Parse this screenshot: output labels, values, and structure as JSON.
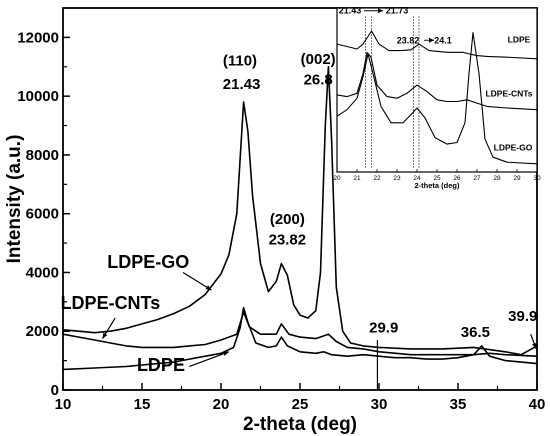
{
  "chart_data": [
    {
      "type": "line",
      "xlabel": "2-theta (deg)",
      "ylabel": "Intensity (a.u.)",
      "xlim": [
        10,
        40
      ],
      "ylim": [
        0,
        13000
      ],
      "x_ticks": [
        10,
        15,
        20,
        25,
        30,
        35,
        40
      ],
      "y_ticks": [
        0,
        2000,
        4000,
        6000,
        8000,
        10000,
        12000
      ],
      "grid": false,
      "series": [
        {
          "name": "LDPE-GO",
          "color": "#000000",
          "points": [
            [
              10,
              2050
            ],
            [
              11,
              2000
            ],
            [
              12,
              1950
            ],
            [
              13,
              2000
            ],
            [
              14,
              2100
            ],
            [
              15,
              2250
            ],
            [
              16,
              2400
            ],
            [
              17,
              2600
            ],
            [
              18,
              2850
            ],
            [
              19,
              3250
            ],
            [
              20,
              3950
            ],
            [
              20.5,
              4600
            ],
            [
              21,
              6000
            ],
            [
              21.2,
              7800
            ],
            [
              21.43,
              9800
            ],
            [
              21.7,
              8800
            ],
            [
              22,
              6600
            ],
            [
              22.5,
              4300
            ],
            [
              23,
              3350
            ],
            [
              23.5,
              3700
            ],
            [
              23.82,
              4300
            ],
            [
              24.2,
              3900
            ],
            [
              24.6,
              2900
            ],
            [
              25,
              2550
            ],
            [
              25.5,
              2450
            ],
            [
              26,
              2700
            ],
            [
              26.3,
              4000
            ],
            [
              26.6,
              9000
            ],
            [
              26.8,
              11000
            ],
            [
              27,
              8500
            ],
            [
              27.3,
              3500
            ],
            [
              27.7,
              2000
            ],
            [
              28.2,
              1600
            ],
            [
              29,
              1500
            ],
            [
              30,
              1450
            ],
            [
              32,
              1400
            ],
            [
              34,
              1400
            ],
            [
              36,
              1450
            ],
            [
              38,
              1300
            ],
            [
              39,
              1200
            ],
            [
              40,
              1500
            ]
          ]
        },
        {
          "name": "LDPE-CNTs",
          "color": "#000000",
          "points": [
            [
              10,
              1900
            ],
            [
              11,
              1800
            ],
            [
              12,
              1700
            ],
            [
              13,
              1600
            ],
            [
              14,
              1500
            ],
            [
              15,
              1450
            ],
            [
              16,
              1450
            ],
            [
              17,
              1450
            ],
            [
              18,
              1500
            ],
            [
              19,
              1550
            ],
            [
              20,
              1700
            ],
            [
              21,
              1900
            ],
            [
              21.43,
              2650
            ],
            [
              21.8,
              2150
            ],
            [
              22.5,
              1900
            ],
            [
              23.5,
              1900
            ],
            [
              23.82,
              2250
            ],
            [
              24.3,
              1900
            ],
            [
              25,
              1800
            ],
            [
              26,
              1750
            ],
            [
              26.8,
              1900
            ],
            [
              27.3,
              1650
            ],
            [
              28,
              1450
            ],
            [
              29,
              1400
            ],
            [
              30,
              1300
            ],
            [
              32,
              1200
            ],
            [
              34,
              1200
            ],
            [
              36,
              1200
            ],
            [
              37,
              1250
            ],
            [
              38,
              1200
            ],
            [
              40,
              1150
            ]
          ]
        },
        {
          "name": "LDPE",
          "color": "#000000",
          "points": [
            [
              10,
              700
            ],
            [
              12,
              750
            ],
            [
              14,
              800
            ],
            [
              15,
              850
            ],
            [
              16,
              900
            ],
            [
              17,
              950
            ],
            [
              18,
              1050
            ],
            [
              19,
              1150
            ],
            [
              20,
              1250
            ],
            [
              20.8,
              1450
            ],
            [
              21.2,
              2100
            ],
            [
              21.43,
              2800
            ],
            [
              21.7,
              2300
            ],
            [
              22.2,
              1600
            ],
            [
              23,
              1450
            ],
            [
              23.5,
              1500
            ],
            [
              23.82,
              1800
            ],
            [
              24.2,
              1500
            ],
            [
              25,
              1300
            ],
            [
              26,
              1250
            ],
            [
              26.5,
              1300
            ],
            [
              27,
              1200
            ],
            [
              28,
              1150
            ],
            [
              29,
              1200
            ],
            [
              30,
              1150
            ],
            [
              31,
              1100
            ],
            [
              32,
              1100
            ],
            [
              33,
              1050
            ],
            [
              34,
              1050
            ],
            [
              35,
              1100
            ],
            [
              36,
              1200
            ],
            [
              36.5,
              1500
            ],
            [
              37,
              1150
            ],
            [
              38,
              1000
            ],
            [
              39,
              950
            ],
            [
              40,
              900
            ]
          ]
        }
      ],
      "annotations": [
        {
          "text": "(110)",
          "x": 21.2,
          "y": 11050
        },
        {
          "text": "21.43",
          "x": 21.3,
          "y": 10250
        },
        {
          "text": "(002)",
          "x": 26.15,
          "y": 11100
        },
        {
          "text": "26.8",
          "x": 26.15,
          "y": 10400
        },
        {
          "text": "(200)",
          "x": 24.2,
          "y": 5650
        },
        {
          "text": "23.82",
          "x": 24.2,
          "y": 4950
        },
        {
          "text": "29.9",
          "x": 30.3,
          "y": 1950
        },
        {
          "text": "36.5",
          "x": 36.1,
          "y": 1800
        },
        {
          "text": "39.9",
          "x": 39.1,
          "y": 2350
        }
      ],
      "series_labels": [
        {
          "text": "LDPE-GO",
          "x": 15.4,
          "y": 4150
        },
        {
          "text": "LDPE-CNTs",
          "x": 13.0,
          "y": 2750
        },
        {
          "text": "LDPE",
          "x": 16.2,
          "y": 650
        }
      ]
    },
    {
      "type": "line",
      "xlabel": "2-theta (deg)",
      "xlim": [
        20,
        30
      ],
      "x_ticks": [
        20,
        21,
        22,
        23,
        24,
        25,
        26,
        27,
        28,
        29,
        30
      ],
      "grid": false,
      "series": [
        {
          "name": "LDPE",
          "color": "#000000",
          "points": [
            [
              20,
              0.78
            ],
            [
              20.5,
              0.765
            ],
            [
              21,
              0.75
            ],
            [
              21.3,
              0.78
            ],
            [
              21.73,
              0.86
            ],
            [
              22.1,
              0.78
            ],
            [
              22.6,
              0.74
            ],
            [
              23.2,
              0.74
            ],
            [
              23.7,
              0.745
            ],
            [
              24.1,
              0.78
            ],
            [
              24.6,
              0.74
            ],
            [
              25.5,
              0.73
            ],
            [
              26.3,
              0.73
            ],
            [
              26.6,
              0.72
            ],
            [
              27,
              0.71
            ],
            [
              27.5,
              0.705
            ],
            [
              28.5,
              0.7
            ],
            [
              30,
              0.69
            ]
          ]
        },
        {
          "name": "LDPE-CNTs",
          "color": "#000000",
          "points": [
            [
              20,
              0.47
            ],
            [
              20.5,
              0.46
            ],
            [
              21,
              0.48
            ],
            [
              21.3,
              0.6
            ],
            [
              21.5,
              0.73
            ],
            [
              21.7,
              0.7
            ],
            [
              22,
              0.53
            ],
            [
              22.5,
              0.46
            ],
            [
              23,
              0.45
            ],
            [
              23.5,
              0.48
            ],
            [
              24,
              0.53
            ],
            [
              24.5,
              0.49
            ],
            [
              25,
              0.44
            ],
            [
              25.5,
              0.43
            ],
            [
              26,
              0.43
            ],
            [
              26.5,
              0.44
            ],
            [
              27,
              0.42
            ],
            [
              27.5,
              0.4
            ],
            [
              28.5,
              0.39
            ],
            [
              30,
              0.38
            ]
          ]
        },
        {
          "name": "LDPE-GO",
          "color": "#000000",
          "points": [
            [
              20,
              0.34
            ],
            [
              20.5,
              0.38
            ],
            [
              21,
              0.45
            ],
            [
              21.3,
              0.58
            ],
            [
              21.55,
              0.72
            ],
            [
              21.8,
              0.6
            ],
            [
              22.2,
              0.4
            ],
            [
              22.7,
              0.3
            ],
            [
              23.3,
              0.3
            ],
            [
              23.7,
              0.35
            ],
            [
              24,
              0.39
            ],
            [
              24.4,
              0.33
            ],
            [
              24.9,
              0.21
            ],
            [
              25.5,
              0.17
            ],
            [
              26,
              0.18
            ],
            [
              26.4,
              0.3
            ],
            [
              26.6,
              0.6
            ],
            [
              26.8,
              0.85
            ],
            [
              27.1,
              0.6
            ],
            [
              27.4,
              0.2
            ],
            [
              27.8,
              0.09
            ],
            [
              28.5,
              0.06
            ],
            [
              30,
              0.05
            ]
          ]
        }
      ],
      "annotations": [
        {
          "text": "21.43",
          "x": 20.65,
          "y": 0.965
        },
        {
          "text": "21.73",
          "x": 23.0,
          "y": 0.965
        },
        {
          "text": "23.82",
          "x": 23.55,
          "y": 0.785
        },
        {
          "text": "24.1",
          "x": 25.3,
          "y": 0.785
        }
      ],
      "series_labels": [
        {
          "text": "LDPE",
          "x": 29.1,
          "y": 0.79
        },
        {
          "text": "LDPE-CNTs",
          "x": 28.6,
          "y": 0.46
        },
        {
          "text": "LDPE-GO",
          "x": 28.8,
          "y": 0.13
        }
      ]
    }
  ]
}
